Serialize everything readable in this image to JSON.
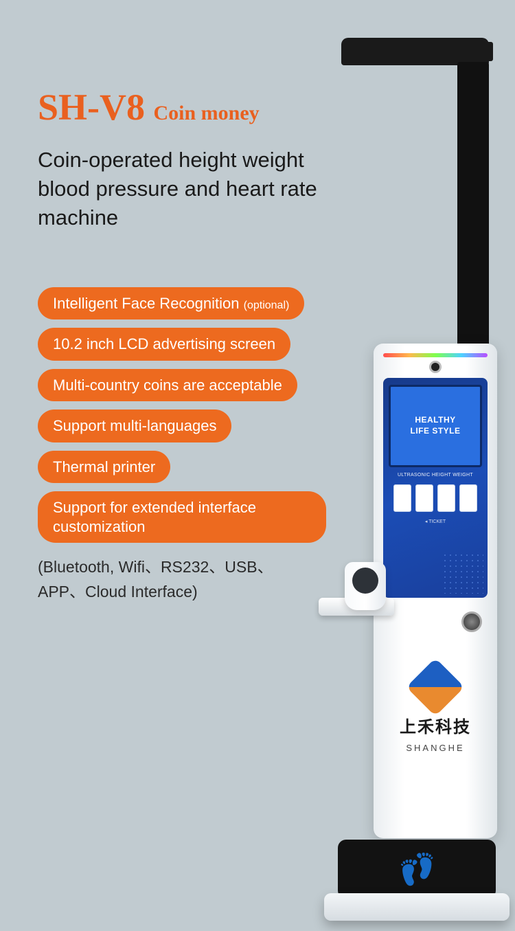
{
  "colors": {
    "background": "#c1cbd0",
    "accent": "#e9601f",
    "pill_bg": "#ed6a1f",
    "pill_text": "#ffffff",
    "body_text": "#1a1a1a",
    "panel_blue": "#1b4db6"
  },
  "title": {
    "main": "SH-V8",
    "sub": "Coin money"
  },
  "subtitle": "Coin-operated height weight blood pressure and heart rate machine",
  "features": [
    {
      "text": "Intelligent Face Recognition",
      "suffix": "(optional)"
    },
    {
      "text": "10.2 inch LCD advertising screen"
    },
    {
      "text": "Multi-country coins are acceptable"
    },
    {
      "text": "Support multi-languages"
    },
    {
      "text": "Thermal printer"
    },
    {
      "text": "Support for extended interface customization",
      "multiline": true
    }
  ],
  "interfaces": "(Bluetooth, Wifi、RS232、USB、APP、Cloud Interface)",
  "device": {
    "screen_line1": "HEALTHY",
    "screen_line2": "LIFE STYLE",
    "logo_cn": "上禾科技",
    "logo_en": "SHANGHE"
  }
}
